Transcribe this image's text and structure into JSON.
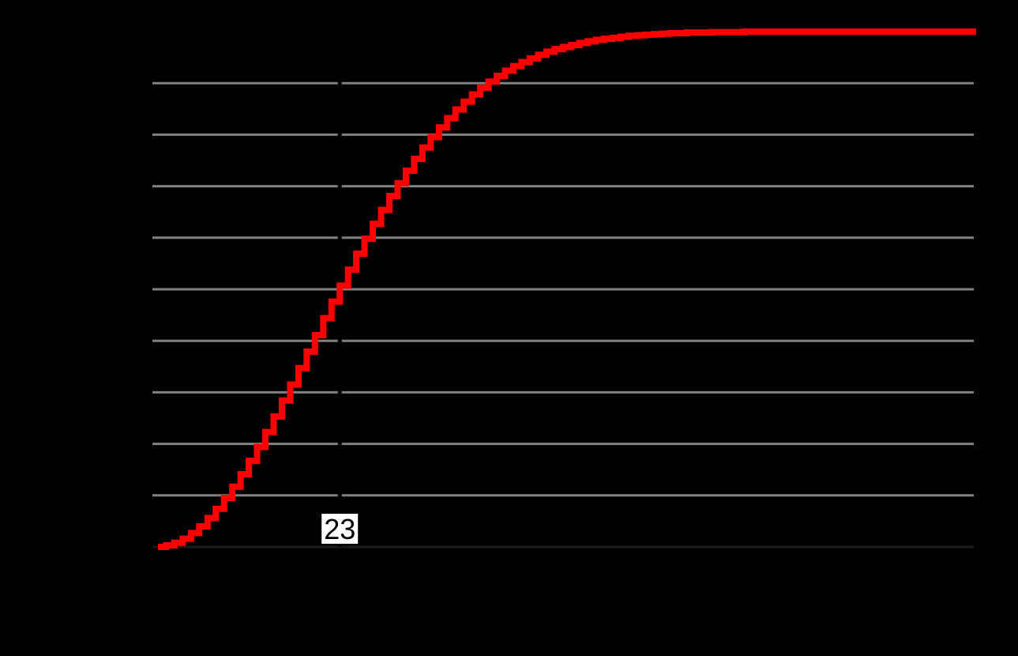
{
  "chart_data": {
    "type": "line",
    "title": "",
    "xlabel": "",
    "ylabel": "",
    "xlim": [
      1,
      100
    ],
    "ylim": [
      0,
      1
    ],
    "grid": "horizontal",
    "step": true,
    "series": [
      {
        "color": "#ff0000",
        "x": [
          1,
          2,
          3,
          4,
          5,
          6,
          7,
          8,
          9,
          10,
          11,
          12,
          13,
          14,
          15,
          16,
          17,
          18,
          19,
          20,
          21,
          22,
          23,
          24,
          25,
          26,
          27,
          28,
          29,
          30,
          31,
          32,
          33,
          34,
          35,
          36,
          37,
          38,
          39,
          40,
          41,
          42,
          43,
          44,
          45,
          46,
          47,
          48,
          49,
          50,
          51,
          52,
          53,
          54,
          55,
          56,
          57,
          58,
          59,
          60,
          61,
          62,
          63,
          64,
          65,
          66,
          67,
          68,
          69,
          70,
          71,
          72,
          73,
          74,
          75,
          76,
          77,
          78,
          79,
          80,
          81,
          82,
          83,
          84,
          85,
          86,
          87,
          88,
          89,
          90,
          91,
          92,
          93,
          94,
          95,
          96,
          97,
          98,
          99,
          100
        ],
        "y": [
          0.0,
          0.003,
          0.008,
          0.016,
          0.027,
          0.04,
          0.056,
          0.074,
          0.095,
          0.117,
          0.141,
          0.167,
          0.194,
          0.223,
          0.253,
          0.284,
          0.315,
          0.347,
          0.379,
          0.411,
          0.444,
          0.476,
          0.507,
          0.538,
          0.569,
          0.598,
          0.627,
          0.654,
          0.681,
          0.706,
          0.73,
          0.753,
          0.775,
          0.795,
          0.814,
          0.832,
          0.849,
          0.864,
          0.878,
          0.891,
          0.903,
          0.914,
          0.924,
          0.933,
          0.941,
          0.948,
          0.955,
          0.961,
          0.966,
          0.97,
          0.974,
          0.978,
          0.981,
          0.984,
          0.986,
          0.988,
          0.99,
          0.992,
          0.993,
          0.994,
          0.995,
          0.996,
          0.997,
          0.997,
          0.998,
          0.998,
          0.998,
          0.999,
          0.999,
          0.999,
          0.999,
          1.0,
          1.0,
          1.0,
          1.0,
          1.0,
          1.0,
          1.0,
          1.0,
          1.0,
          1.0,
          1.0,
          1.0,
          1.0,
          1.0,
          1.0,
          1.0,
          1.0,
          1.0,
          1.0,
          1.0,
          1.0,
          1.0,
          1.0,
          1.0,
          1.0,
          1.0,
          1.0,
          1.0,
          1.0
        ]
      }
    ],
    "annotations": [
      {
        "text": "23",
        "x": 23
      }
    ]
  },
  "colors": {
    "background": "#000000",
    "grid": "#808080",
    "series": "#ff0000",
    "annotation_bg": "#ffffff",
    "annotation_text": "#000000"
  }
}
